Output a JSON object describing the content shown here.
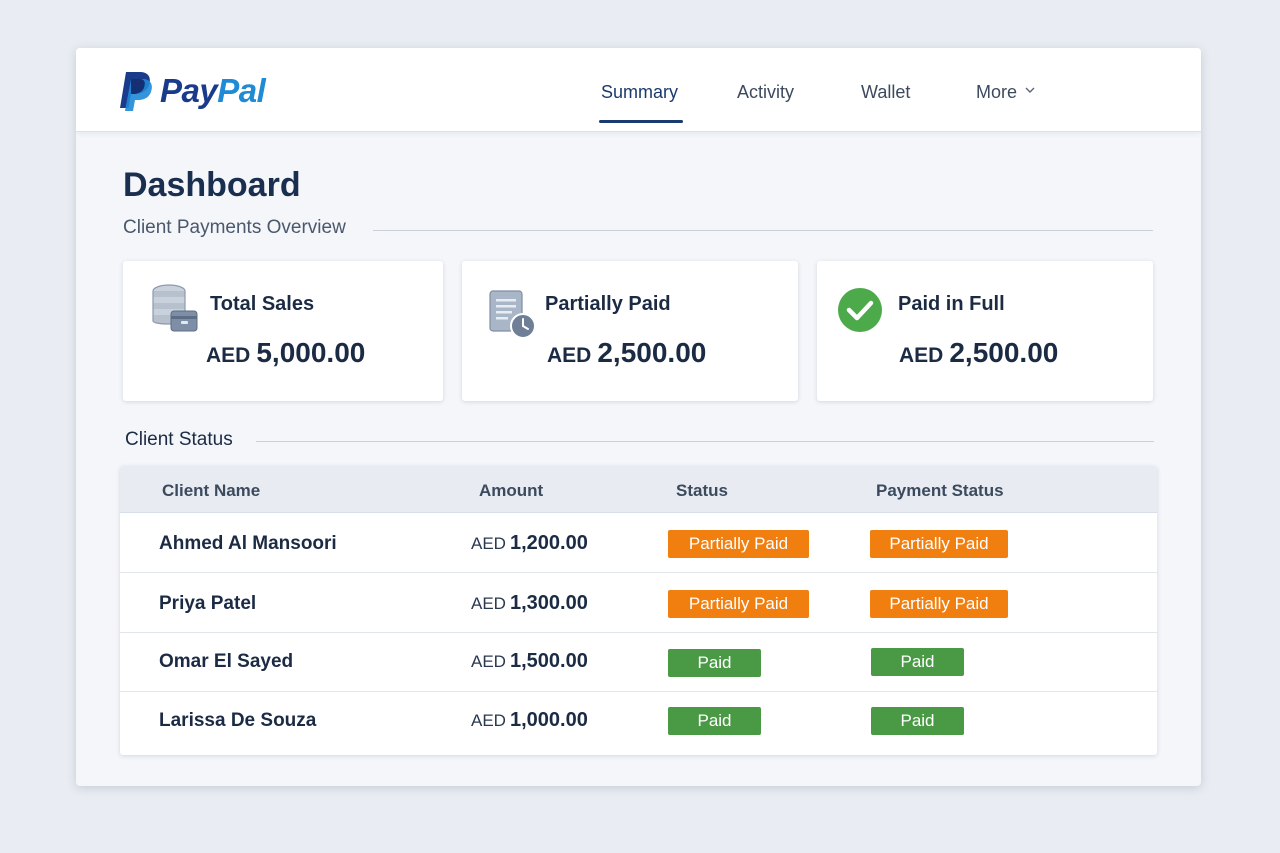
{
  "brand": {
    "name_part1": "Pay",
    "name_part2": "Pal",
    "colors": {
      "dark_blue": "#1a3b8c",
      "light_blue": "#1f8ad6"
    }
  },
  "nav": {
    "items": [
      {
        "label": "Summary",
        "active": true
      },
      {
        "label": "Activity",
        "active": false
      },
      {
        "label": "Wallet",
        "active": false
      },
      {
        "label": "More",
        "active": false,
        "icon": "chevron-down-icon"
      }
    ]
  },
  "page": {
    "title": "Dashboard",
    "overview_label": "Client Payments Overview",
    "status_label": "Client Status"
  },
  "cards": [
    {
      "title": "Total Sales",
      "currency": "AED",
      "value": "5,000.00",
      "icon": "coins-wallet-icon"
    },
    {
      "title": "Partially Paid",
      "currency": "AED",
      "value": "2,500.00",
      "icon": "document-clock-icon"
    },
    {
      "title": "Paid in Full",
      "currency": "AED",
      "value": "2,500.00",
      "icon": "check-circle-icon"
    }
  ],
  "table": {
    "columns": [
      "Client Name",
      "Amount",
      "Status",
      "Payment Status"
    ],
    "rows": [
      {
        "name": "Ahmed Al Mansoori",
        "currency": "AED",
        "amount": "1,200.00",
        "status": "Partially Paid",
        "payment_status": "Partially Paid"
      },
      {
        "name": "Priya Patel",
        "currency": "AED",
        "amount": "1,300.00",
        "status": "Partially Paid",
        "payment_status": "Partially Paid"
      },
      {
        "name": "Omar El Sayed",
        "currency": "AED",
        "amount": "1,500.00",
        "status": "Paid",
        "payment_status": "Paid"
      },
      {
        "name": "Larissa De Souza",
        "currency": "AED",
        "amount": "1,000.00",
        "status": "Paid",
        "payment_status": "Paid"
      }
    ]
  },
  "colors": {
    "partial": "#f07f10",
    "paid": "#4a9a45",
    "accent": "#1a3b6d"
  }
}
